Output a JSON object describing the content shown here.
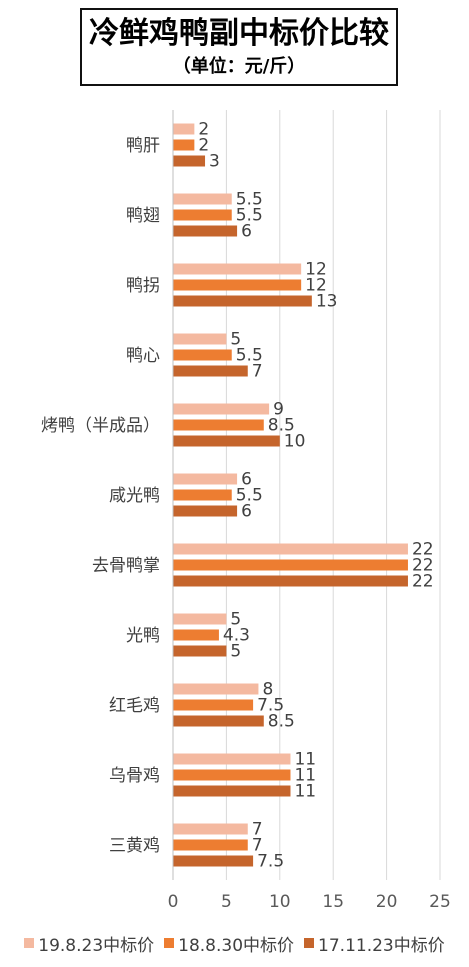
{
  "chart_data": {
    "type": "bar",
    "orientation": "horizontal",
    "title": "冷鲜鸡鸭副中标价比较",
    "subtitle": "（单位：元/斤）",
    "categories": [
      "鸭肝",
      "鸭翅",
      "鸭拐",
      "鸭心",
      "烤鸭（半成品）",
      "咸光鸭",
      "去骨鸭掌",
      "光鸭",
      "红毛鸡",
      "乌骨鸡",
      "三黄鸡"
    ],
    "series": [
      {
        "name": "19.8.23中标价",
        "color": "#F4B9A0",
        "values": [
          2,
          5.5,
          12,
          5,
          9,
          6,
          22,
          5,
          8,
          11,
          7
        ]
      },
      {
        "name": "18.8.30中标价",
        "color": "#ED7D31",
        "values": [
          2,
          5.5,
          12,
          5.5,
          8.5,
          5.5,
          22,
          4.3,
          7.5,
          11,
          7
        ]
      },
      {
        "name": "17.11.23中标价",
        "color": "#C5652C",
        "values": [
          3,
          6,
          13,
          7,
          10,
          6,
          22,
          5,
          8.5,
          11,
          7.5
        ]
      }
    ],
    "xlim": [
      0,
      25
    ],
    "xticks": [
      0,
      5,
      10,
      15,
      20,
      25
    ],
    "grid": true,
    "legend_position": "bottom"
  }
}
